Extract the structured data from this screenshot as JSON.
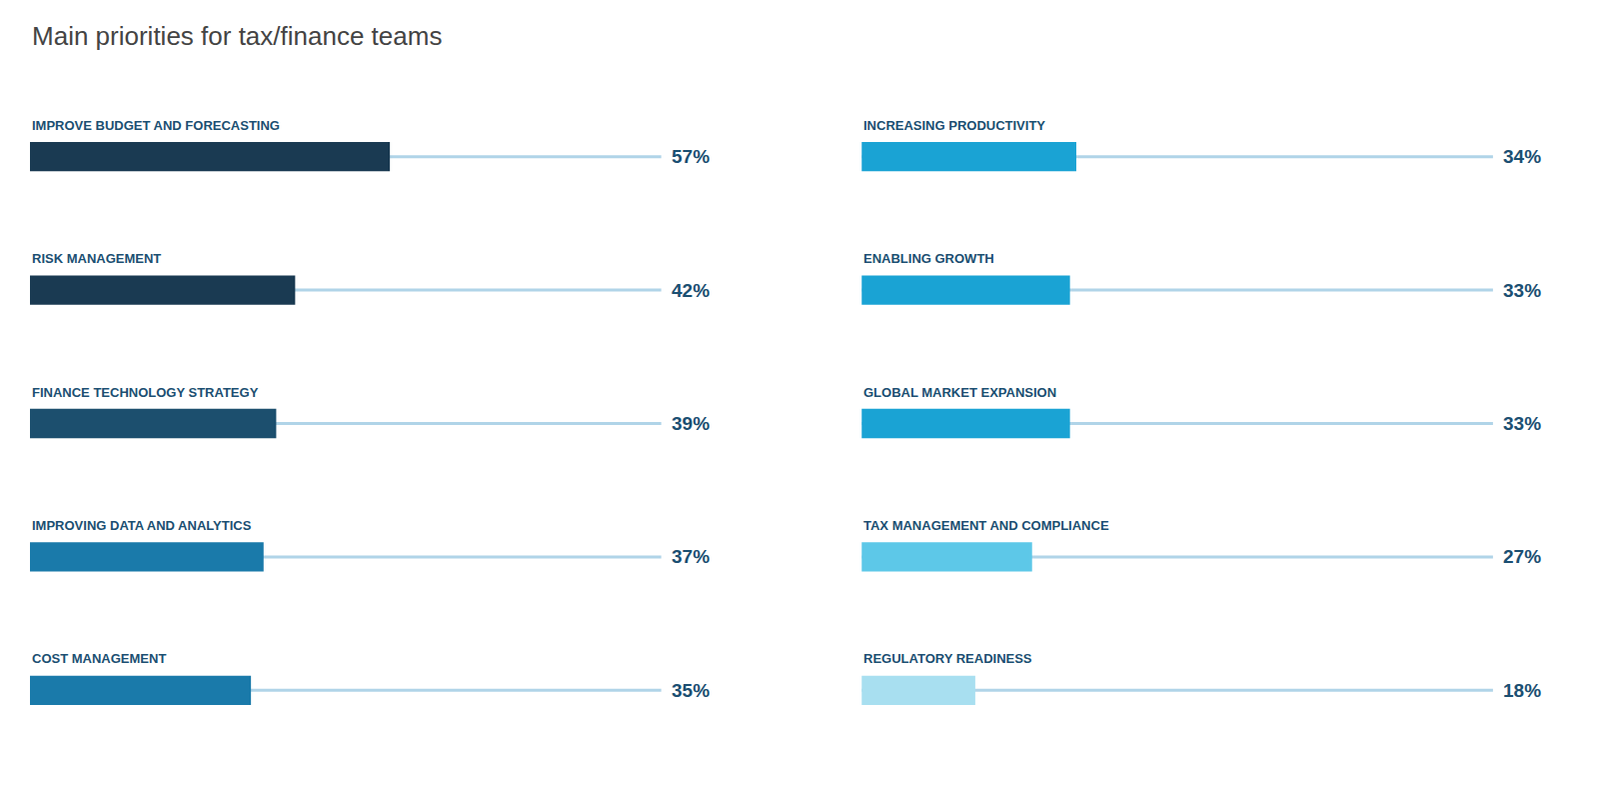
{
  "chart_data": [
    {
      "type": "bar",
      "title": "Main priorities for tax/finance teams",
      "orientation": "horizontal",
      "categories": [
        "IMPROVE BUDGET AND FORECASTING",
        "RISK MANAGEMENT",
        "FINANCE TECHNOLOGY STRATEGY",
        "IMPROVING DATA AND ANALYTICS",
        "COST MANAGEMENT"
      ],
      "values": [
        57,
        42,
        39,
        37,
        35
      ],
      "value_labels": [
        "57%",
        "42%",
        "39%",
        "37%",
        "35%"
      ],
      "colors": [
        "#1a3a52",
        "#1a3a52",
        "#1c4f6e",
        "#1a7aaa",
        "#1a7aaa"
      ],
      "xlim": [
        0,
        100
      ],
      "grid": false,
      "tick_labels": false,
      "data_labels": true
    },
    {
      "type": "bar",
      "orientation": "horizontal",
      "categories": [
        "INCREASING PRODUCTIVITY",
        "ENABLING GROWTH",
        "GLOBAL MARKET EXPANSION",
        "TAX MANAGEMENT AND COMPLIANCE",
        "REGULATORY READINESS"
      ],
      "values": [
        34,
        33,
        33,
        27,
        18
      ],
      "value_labels": [
        "34%",
        "33%",
        "33%",
        "27%",
        "18%"
      ],
      "colors": [
        "#1aa3d4",
        "#1aa3d4",
        "#1aa3d4",
        "#5dc8e8",
        "#a8dff0"
      ],
      "xlim": [
        0,
        100
      ],
      "grid": false,
      "tick_labels": false,
      "data_labels": true
    }
  ]
}
